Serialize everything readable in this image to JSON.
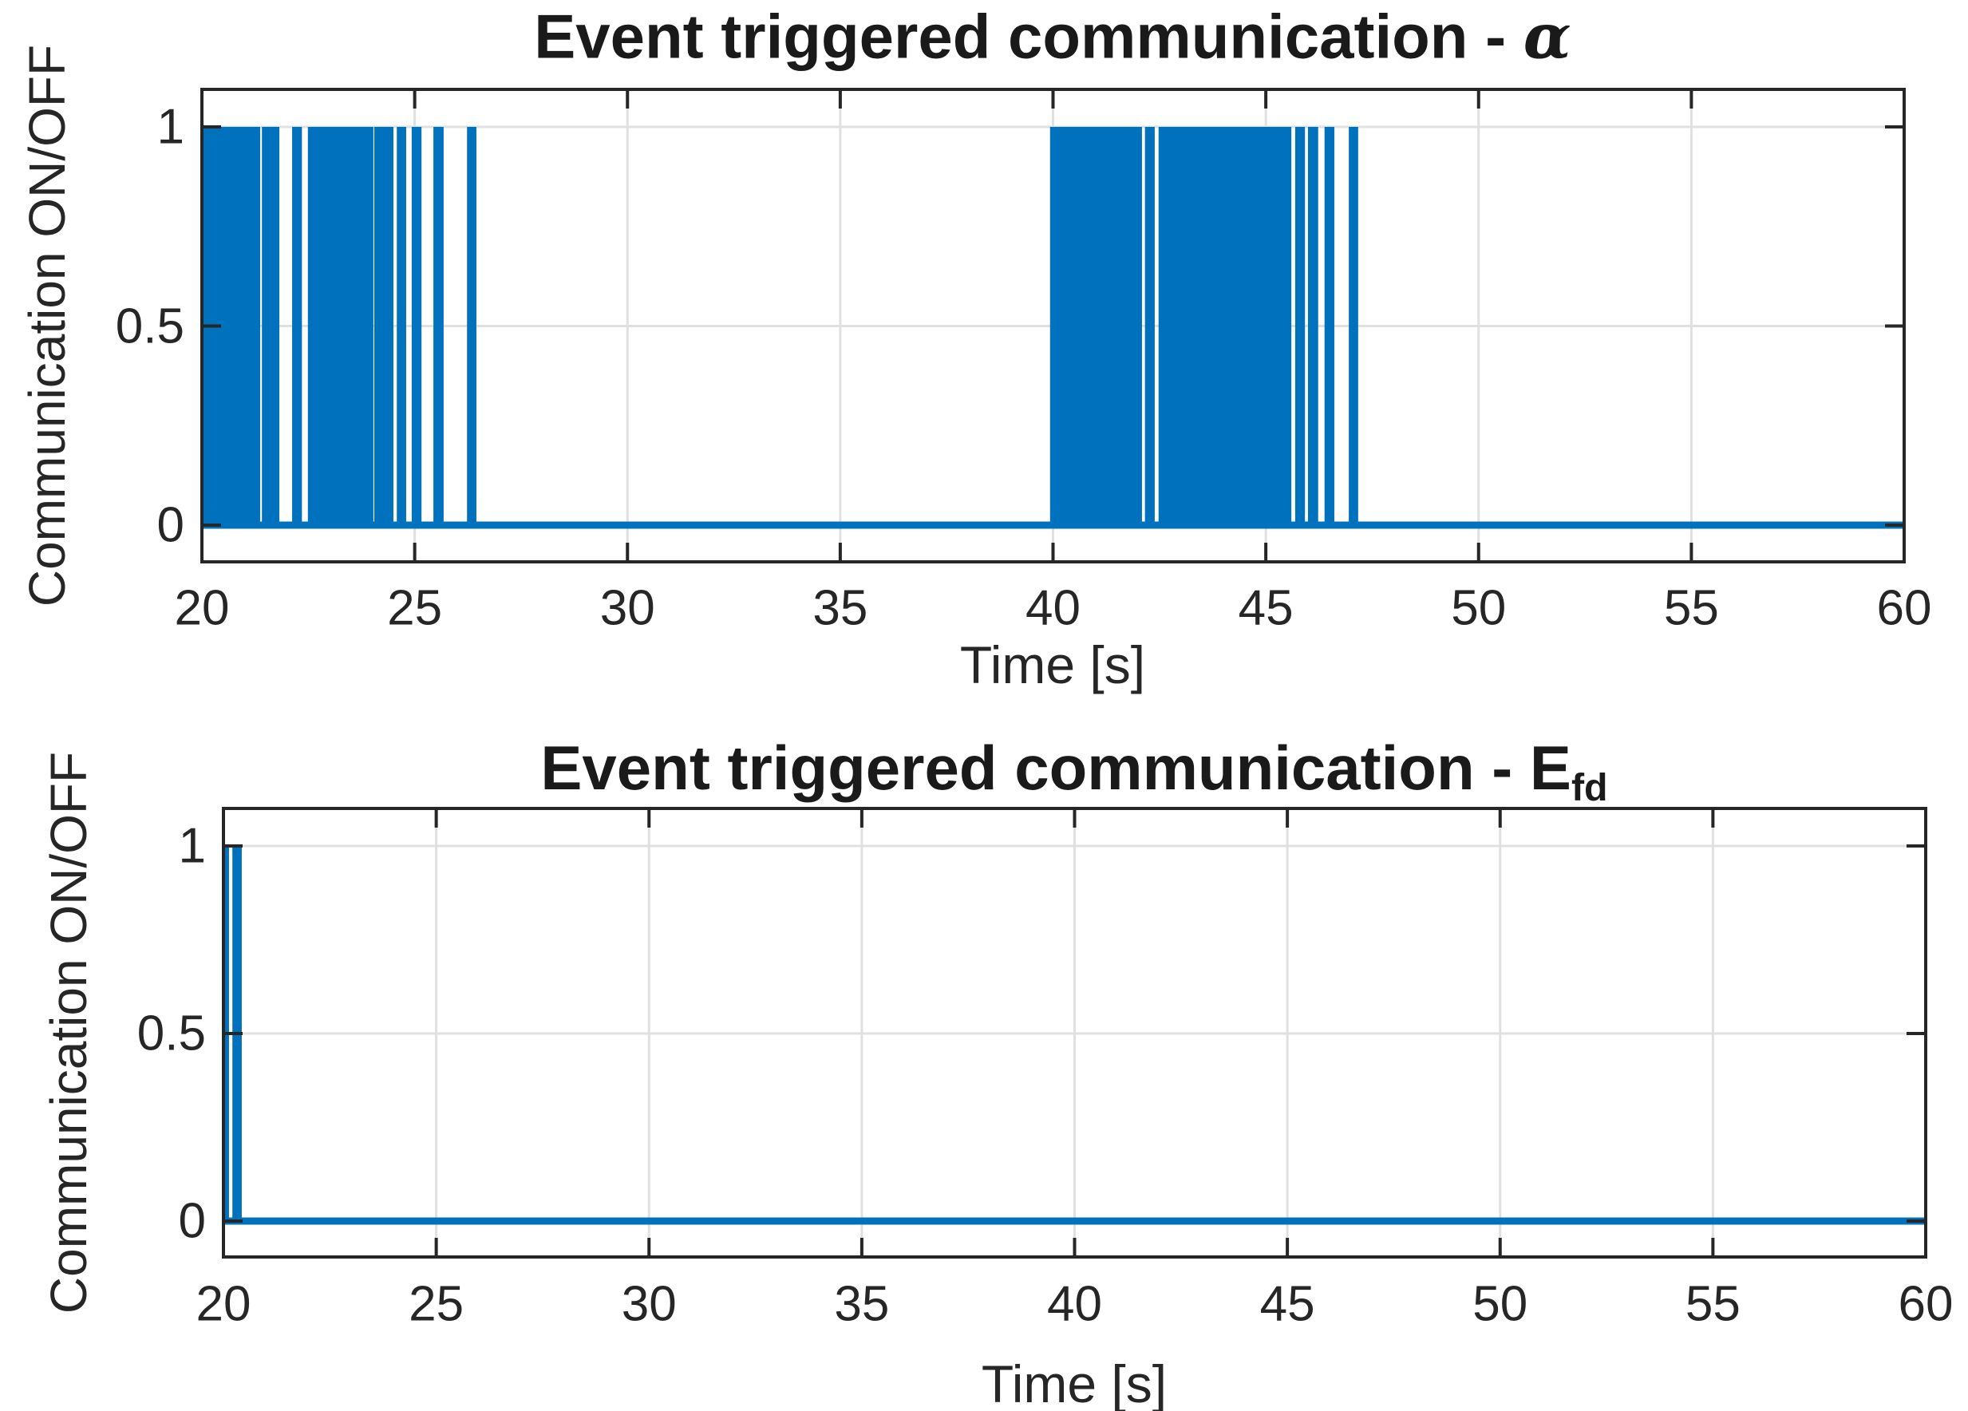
{
  "figure": {
    "background": "#ffffff"
  },
  "colors": {
    "line": "#0072bd",
    "grid": "#e0e0e0",
    "axis": "#262626",
    "text": "#262626"
  },
  "chart_data": [
    {
      "type": "area",
      "description": "Binary event-trigger pulse train (communication ON/OFF vs time)",
      "title": {
        "text": "Event triggered communication -",
        "symbol": "α",
        "subscript": ""
      },
      "xlabel": "Time [s]",
      "ylabel": "Communication ON/OFF",
      "xlim": [
        20,
        60
      ],
      "ylim": [
        -0.09,
        1.09
      ],
      "x_ticks": [
        20,
        25,
        30,
        35,
        40,
        45,
        50,
        55,
        60
      ],
      "x_tick_labels": [
        "20",
        "25",
        "30",
        "35",
        "40",
        "45",
        "50",
        "55",
        "60"
      ],
      "y_ticks": [
        0,
        0.5,
        1
      ],
      "y_tick_labels": [
        "0",
        "0.5",
        "1"
      ],
      "grid": true,
      "legend_position": "none",
      "baseline_value": 0,
      "on_value": 1,
      "on_intervals": [
        [
          20.0,
          21.37
        ],
        [
          21.41,
          21.82
        ],
        [
          22.12,
          22.35
        ],
        [
          22.49,
          24.03
        ],
        [
          24.05,
          24.5
        ],
        [
          24.58,
          24.8
        ],
        [
          24.93,
          25.16
        ],
        [
          25.44,
          25.68
        ],
        [
          26.23,
          26.45
        ],
        [
          39.93,
          42.09
        ],
        [
          42.16,
          42.39
        ],
        [
          42.48,
          45.6
        ],
        [
          45.69,
          45.92
        ],
        [
          45.99,
          46.23
        ],
        [
          46.38,
          46.61
        ],
        [
          46.95,
          47.17
        ]
      ]
    },
    {
      "type": "area",
      "description": "Binary event-trigger pulse train (communication ON/OFF vs time)",
      "title": {
        "text": "Event triggered communication -",
        "symbol": "E",
        "subscript": "fd"
      },
      "xlabel": "Time [s]",
      "ylabel": "Communication ON/OFF",
      "xlim": [
        20,
        60
      ],
      "ylim": [
        -0.09,
        1.09
      ],
      "x_ticks": [
        20,
        25,
        30,
        35,
        40,
        45,
        50,
        55,
        60
      ],
      "x_tick_labels": [
        "20",
        "25",
        "30",
        "35",
        "40",
        "45",
        "50",
        "55",
        "60"
      ],
      "y_ticks": [
        0,
        0.5,
        1
      ],
      "y_tick_labels": [
        "0",
        "0.5",
        "1"
      ],
      "grid": true,
      "legend_position": "none",
      "baseline_value": 0,
      "on_value": 1,
      "on_intervals": [
        [
          20.0,
          20.13
        ],
        [
          20.21,
          20.43
        ]
      ]
    }
  ]
}
